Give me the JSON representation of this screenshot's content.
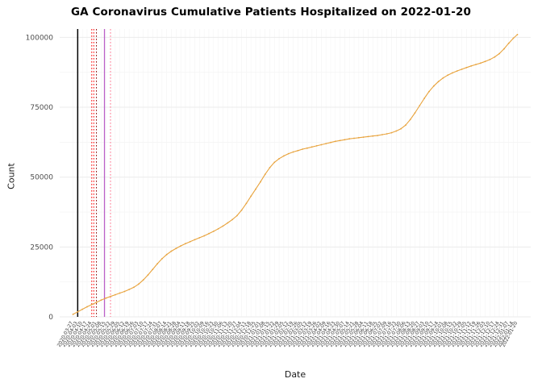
{
  "title": "GA Coronavirus Cumulative Patients Hospitalized on 2022-01-20",
  "chart_data": {
    "type": "line",
    "title": "GA Coronavirus Cumulative Patients Hospitalized on 2022-01-20",
    "xlabel": "Date",
    "ylabel": "Count",
    "ylim": [
      0,
      103000
    ],
    "yticks": [
      0,
      25000,
      50000,
      75000,
      100000
    ],
    "yminor": [
      12500,
      37500,
      62500,
      87500
    ],
    "grid": true,
    "legend": "none",
    "plot_bg": "#ffffff",
    "grid_color": "#ebebeb",
    "minor_grid_color": "#f4f4f4",
    "axis_text_color": "#4d4d4d",
    "series": [
      {
        "name": "cumulative-patients-hospitalized",
        "color": "#e8a33d",
        "x": [
          "2020-03-27",
          "2020-04-03",
          "2020-04-10",
          "2020-04-17",
          "2020-04-24",
          "2020-05-01",
          "2020-05-08",
          "2020-05-15",
          "2020-05-22",
          "2020-05-29",
          "2020-06-05",
          "2020-06-12",
          "2020-06-19",
          "2020-06-26",
          "2020-07-03",
          "2020-07-10",
          "2020-07-17",
          "2020-07-24",
          "2020-07-31",
          "2020-08-07",
          "2020-08-14",
          "2020-08-21",
          "2020-08-28",
          "2020-09-04",
          "2020-09-11",
          "2020-09-18",
          "2020-09-25",
          "2020-10-02",
          "2020-10-09",
          "2020-10-16",
          "2020-10-23",
          "2020-10-30",
          "2020-11-06",
          "2020-11-13",
          "2020-11-20",
          "2020-11-27",
          "2020-12-04",
          "2020-12-11",
          "2020-12-18",
          "2020-12-25",
          "2021-01-01",
          "2021-01-08",
          "2021-01-15",
          "2021-01-22",
          "2021-01-29",
          "2021-02-05",
          "2021-02-12",
          "2021-02-19",
          "2021-02-26",
          "2021-03-05",
          "2021-03-12",
          "2021-03-19",
          "2021-03-26",
          "2021-04-02",
          "2021-04-09",
          "2021-04-16",
          "2021-04-23",
          "2021-04-30",
          "2021-05-07",
          "2021-05-14",
          "2021-05-21",
          "2021-05-28",
          "2021-06-04",
          "2021-06-11",
          "2021-06-18",
          "2021-06-25",
          "2021-07-02",
          "2021-07-09",
          "2021-07-16",
          "2021-07-23",
          "2021-07-30",
          "2021-08-06",
          "2021-08-13",
          "2021-08-20",
          "2021-08-27",
          "2021-09-03",
          "2021-09-10",
          "2021-09-17",
          "2021-09-24",
          "2021-10-01",
          "2021-10-08",
          "2021-10-15",
          "2021-10-22",
          "2021-10-29",
          "2021-11-05",
          "2021-11-12",
          "2021-11-19",
          "2021-11-26",
          "2021-12-03",
          "2021-12-10",
          "2021-12-17",
          "2021-12-24",
          "2021-12-31",
          "2022-01-07",
          "2022-01-14",
          "2022-01-20"
        ],
        "values": [
          900,
          1800,
          2700,
          3600,
          4400,
          5200,
          6000,
          6700,
          7300,
          7900,
          8500,
          9100,
          9800,
          10600,
          11700,
          13200,
          15000,
          17000,
          19000,
          20800,
          22300,
          23500,
          24500,
          25400,
          26200,
          26900,
          27600,
          28300,
          29000,
          29800,
          30600,
          31500,
          32500,
          33600,
          34800,
          36200,
          38200,
          40600,
          43200,
          45700,
          48300,
          51000,
          53400,
          55300,
          56600,
          57600,
          58400,
          59000,
          59500,
          60000,
          60400,
          60800,
          61200,
          61600,
          62000,
          62400,
          62800,
          63100,
          63400,
          63700,
          63900,
          64100,
          64300,
          64500,
          64700,
          64900,
          65200,
          65500,
          65900,
          66500,
          67300,
          68600,
          70600,
          73000,
          75600,
          78200,
          80600,
          82600,
          84200,
          85500,
          86500,
          87300,
          88000,
          88600,
          89200,
          89800,
          90300,
          90800,
          91400,
          92100,
          93000,
          94200,
          95900,
          97900,
          99700,
          101000
        ]
      }
    ],
    "vlines": [
      {
        "date": "2020-04-03",
        "color": "#000000",
        "style": "solid",
        "width": 1.5
      },
      {
        "date": "2020-04-24",
        "color": "#ff0000",
        "style": "dotted",
        "width": 1
      },
      {
        "date": "2020-04-27",
        "color": "#ff0000",
        "style": "dotted",
        "width": 1
      },
      {
        "date": "2020-05-01",
        "color": "#8b0000",
        "style": "dotted",
        "width": 1
      },
      {
        "date": "2020-05-13",
        "color": "#bb5fc8",
        "style": "solid",
        "width": 1.3
      },
      {
        "date": "2020-05-22",
        "color": "#ff6e8a",
        "style": "dotted",
        "width": 1
      }
    ]
  }
}
